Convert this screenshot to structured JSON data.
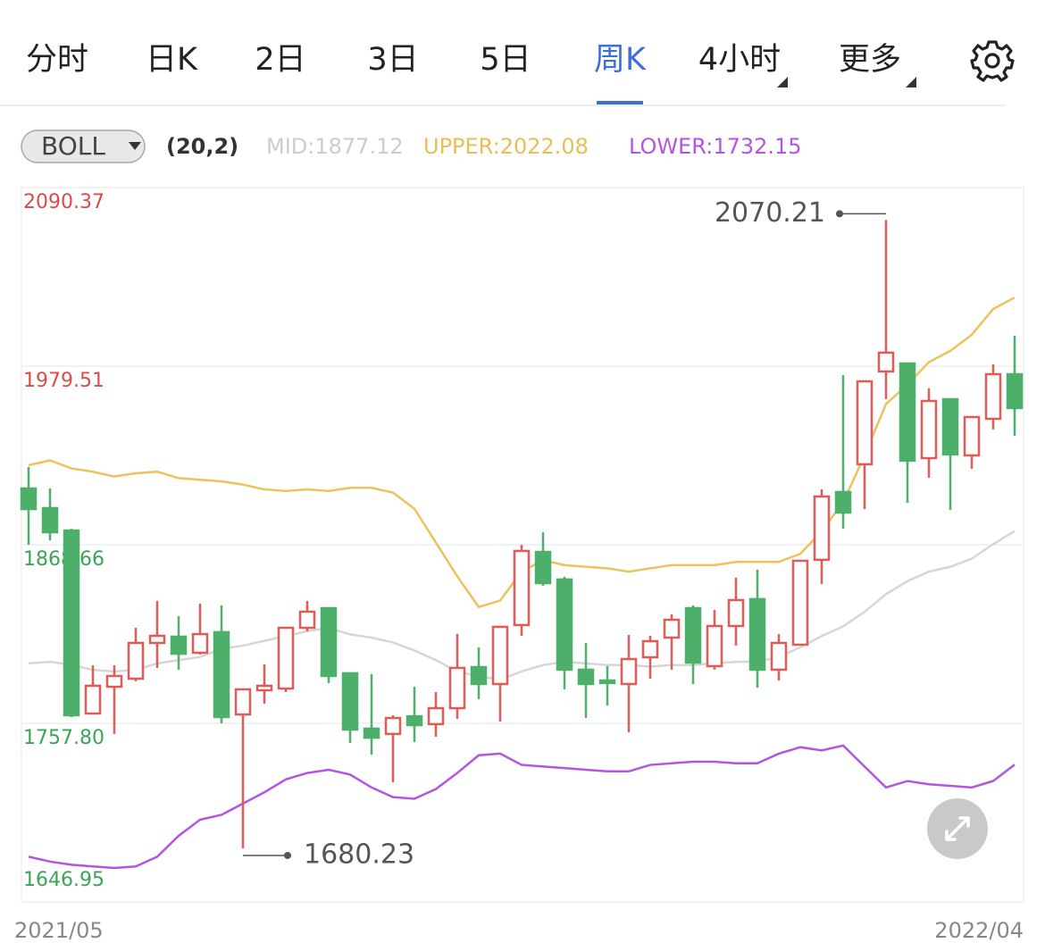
{
  "tabs": [
    "分时",
    "日K",
    "2日",
    "3日",
    "5日",
    "周K",
    "4小时",
    "更多"
  ],
  "active_tab": 5,
  "indicator": {
    "name": "BOLL",
    "params": "(20,2)"
  },
  "chart_data": {
    "type": "candlestick",
    "up_color": "#e05a57",
    "down_color": "#4caf6a",
    "ylim": [
      1646.95,
      2090.37
    ],
    "yticks": [
      2090.37,
      1979.51,
      1868.66,
      {
        "value": 1757.8,
        "label": "1757.80"
      },
      1646.95
    ],
    "grid": true,
    "x_labels": [
      "2021/05",
      "2022/04"
    ],
    "open": [
      1903.6,
      1891.4,
      1877.5,
      1763.9,
      1780.5,
      1785.5,
      1807.7,
      1811.6,
      1801.6,
      1814.4,
      1763.3,
      1778.3,
      1779.4,
      1817.1,
      1829.3,
      1788.9,
      1754.5,
      1751.2,
      1762.2,
      1757.3,
      1767.2,
      1792.7,
      1782.2,
      1818.8,
      1864.2,
      1847.1,
      1791.1,
      1784.4,
      1782.2,
      1798.8,
      1811.0,
      1829.3,
      1793.3,
      1818.2,
      1834.9,
      1791.1,
      1806.6,
      1859.3,
      1901.4,
      1918.6,
      1976.2,
      1981.2,
      1922.4,
      1959.0,
      1924.1,
      1946.8,
      1974.5
    ],
    "high": [
      1916.9,
      1903.6,
      1878.6,
      1793.8,
      1793.8,
      1817.1,
      1833.8,
      1824.3,
      1832.1,
      1831.0,
      1778.9,
      1794.4,
      1817.1,
      1833.8,
      1829.9,
      1788.9,
      1788.3,
      1762.8,
      1780.5,
      1777.2,
      1813.2,
      1804.9,
      1817.7,
      1868.6,
      1876.4,
      1848.7,
      1807.7,
      1793.3,
      1812.7,
      1812.1,
      1825.4,
      1831.0,
      1828.2,
      1848.2,
      1853.2,
      1813.2,
      1858.7,
      1903.0,
      1974.0,
      1970.1,
      2070.21,
      1981.2,
      1965.7,
      1959.0,
      1947.9,
      1980.6,
      1998.4
    ],
    "low": [
      1868.6,
      1871.4,
      1761.7,
      1763.3,
      1751.2,
      1783.9,
      1792.2,
      1791.1,
      1800.5,
      1757.8,
      1680.23,
      1770.0,
      1777.2,
      1814.9,
      1782.8,
      1745.6,
      1738.4,
      1721.2,
      1746.2,
      1749.5,
      1760.6,
      1772.8,
      1758.9,
      1812.1,
      1843.2,
      1778.9,
      1761.1,
      1768.9,
      1752.3,
      1785.5,
      1791.1,
      1782.2,
      1791.1,
      1806.0,
      1780.0,
      1784.4,
      1806.0,
      1844.3,
      1878.6,
      1890.8,
      1959.0,
      1894.7,
      1910.2,
      1890.3,
      1915.8,
      1940.2,
      1936.3
    ],
    "close": [
      1890.8,
      1876.4,
      1762.8,
      1781.1,
      1787.2,
      1807.7,
      1812.1,
      1801.0,
      1813.2,
      1761.7,
      1778.9,
      1781.1,
      1817.1,
      1827.1,
      1787.2,
      1753.9,
      1748.9,
      1761.1,
      1756.7,
      1767.2,
      1792.2,
      1782.2,
      1817.7,
      1864.8,
      1844.8,
      1791.1,
      1782.2,
      1782.8,
      1797.7,
      1808.8,
      1822.1,
      1795.5,
      1818.2,
      1834.3,
      1791.1,
      1807.7,
      1858.7,
      1898.6,
      1888.6,
      1970.1,
      1987.9,
      1920.8,
      1957.9,
      1924.7,
      1947.9,
      1974.5,
      1953.5
    ],
    "series": [
      {
        "name": "MID:",
        "color": "#d6d6d6",
        "values": [
          1795,
          1796,
          1794,
          1791,
          1790,
          1791,
          1795,
          1797,
          1799,
          1804,
          1806,
          1809,
          1812,
          1815,
          1817,
          1813,
          1811,
          1808,
          1803,
          1797,
          1790,
          1787,
          1785,
          1790,
          1794,
          1796,
          1795,
          1794,
          1794,
          1793,
          1794,
          1794,
          1795,
          1796,
          1796,
          1799,
          1805,
          1812,
          1818,
          1827,
          1838,
          1846,
          1852,
          1855,
          1860,
          1869,
          1877.12
        ]
      },
      {
        "name": "UPPER:",
        "color": "#ecc25c",
        "values": [
          1918,
          1921,
          1916,
          1914,
          1911,
          1913,
          1914,
          1910,
          1909,
          1908,
          1906,
          1903,
          1902,
          1903,
          1902,
          1904,
          1904,
          1901,
          1891,
          1870,
          1849,
          1830,
          1834,
          1852,
          1859,
          1856,
          1855,
          1854,
          1852,
          1854,
          1856,
          1856,
          1856,
          1858,
          1858,
          1858,
          1863,
          1877,
          1895,
          1924,
          1956,
          1968,
          1982,
          1989,
          1999,
          2015,
          2022.08
        ]
      },
      {
        "name": "LOWER:",
        "color": "#b455e0",
        "values": [
          1675,
          1672,
          1670,
          1669,
          1668,
          1669,
          1675,
          1688,
          1698,
          1701,
          1708,
          1715,
          1723,
          1727,
          1729,
          1726,
          1718,
          1712,
          1711,
          1717,
          1727,
          1738,
          1739,
          1732,
          1731,
          1730,
          1729,
          1728,
          1728,
          1732,
          1733,
          1734,
          1734,
          1733,
          1733,
          1739,
          1743,
          1741,
          1744,
          1731,
          1718,
          1722,
          1720,
          1719,
          1718,
          1722,
          1732.15
        ]
      }
    ]
  }
}
